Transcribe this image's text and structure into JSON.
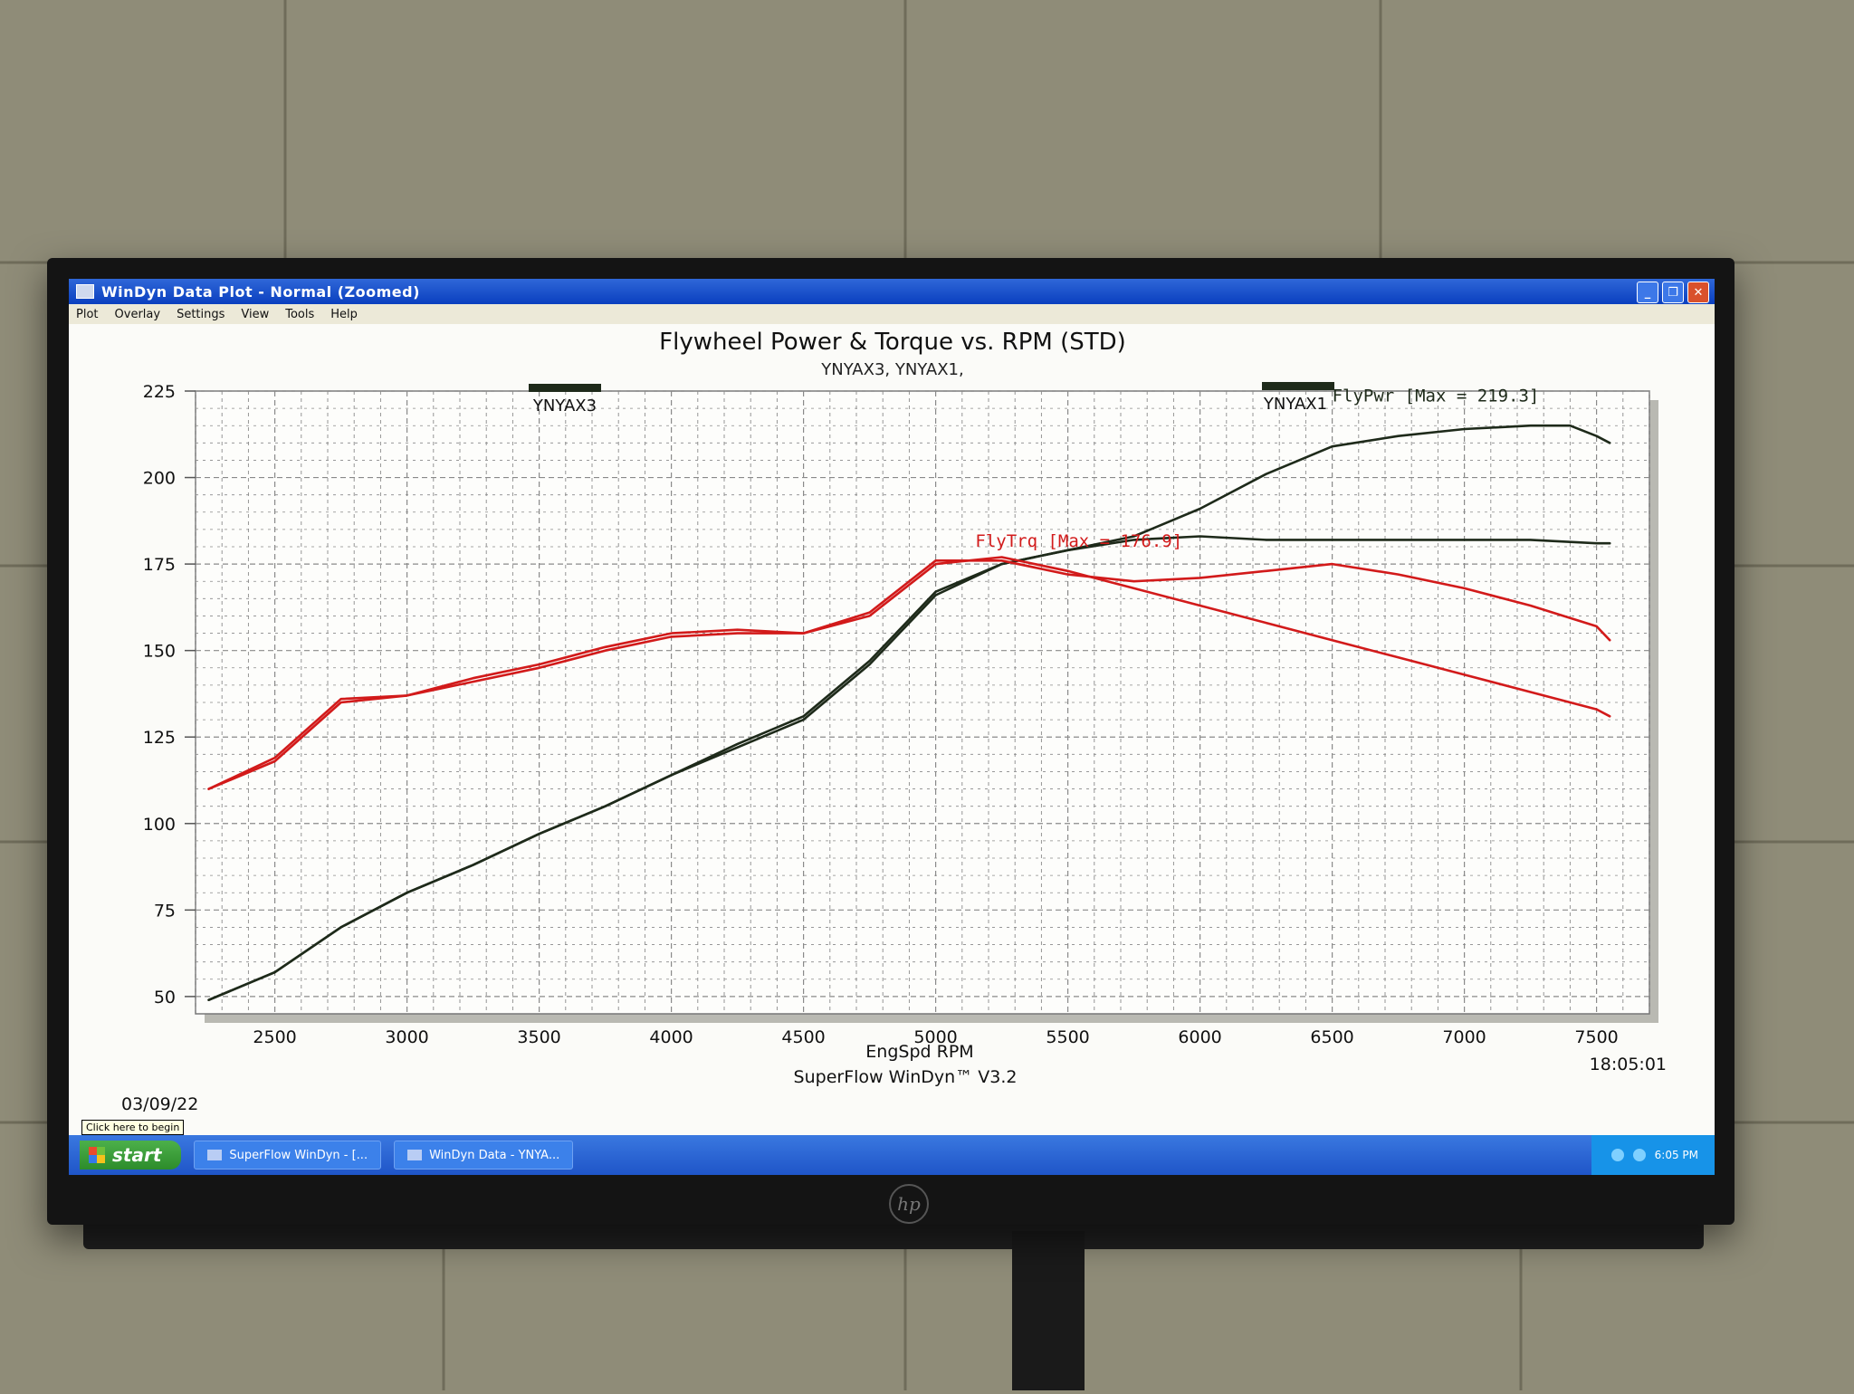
{
  "window": {
    "title": "WinDyn Data Plot - Normal   (Zoomed)"
  },
  "menu": [
    "Plot",
    "Overlay",
    "Settings",
    "View",
    "Tools",
    "Help"
  ],
  "footer": {
    "date": "03/09/22",
    "software": "SuperFlow WinDyn™ V3.2",
    "time": "18:05:01"
  },
  "taskbar": {
    "tooltip": "Click here to begin",
    "start_label": "start",
    "tasks": [
      "SuperFlow WinDyn - [...",
      "WinDyn Data - YNYA..."
    ],
    "clock": "6:05 PM"
  },
  "colors": {
    "power": "#1e2a1a",
    "torque": "#d21a1a",
    "grid": "#8a8a8a",
    "title_bar": "#0a3fbf"
  },
  "chart_data": {
    "type": "line",
    "title": "Flywheel Power & Torque vs. RPM (STD)",
    "subtitle": "YNYAX3, YNYAX1,",
    "xlabel": "EngSpd RPM",
    "ylabel": "",
    "xlim": [
      2200,
      7700
    ],
    "ylim": [
      45,
      225
    ],
    "xticks": [
      2500,
      3000,
      3500,
      4000,
      4500,
      5000,
      5500,
      6000,
      6500,
      7000,
      7500
    ],
    "yticks": [
      50,
      75,
      100,
      125,
      150,
      175,
      200,
      225
    ],
    "grid": true,
    "legend": [
      {
        "name": "YNYAX3",
        "position": "top-left"
      },
      {
        "name": "YNYAX1",
        "position": "top-right"
      }
    ],
    "annotations": [
      {
        "text": "FlyPwr [Max = 219.3]",
        "x": 6500,
        "y": 222,
        "color": "#1e2a1a"
      },
      {
        "text": "FlyTrq [Max = 176.9]",
        "x": 5150,
        "y": 180,
        "color": "#d21a1a"
      }
    ],
    "series": [
      {
        "name": "YNYAX1",
        "kind": "power",
        "color": "#1e2a1a",
        "x": [
          2250,
          2500,
          2750,
          3000,
          3250,
          3500,
          3750,
          4000,
          4250,
          4500,
          4750,
          5000,
          5250,
          5500,
          5750,
          6000,
          6250,
          6500,
          6750,
          7000,
          7250,
          7400,
          7500,
          7550
        ],
        "y": [
          49,
          57,
          70,
          80,
          88,
          97,
          105,
          114,
          122,
          130,
          146,
          166,
          175,
          179,
          183,
          191,
          201,
          209,
          212,
          214,
          215,
          215,
          212,
          210
        ]
      },
      {
        "name": "YNYAX3",
        "kind": "power",
        "color": "#1e2a1a",
        "x": [
          2250,
          2500,
          2750,
          3000,
          3250,
          3500,
          3750,
          4000,
          4250,
          4500,
          4750,
          5000,
          5250,
          5500,
          5750,
          6000,
          6250,
          6500,
          6750,
          7000,
          7250,
          7500,
          7550
        ],
        "y": [
          49,
          57,
          70,
          80,
          88,
          97,
          105,
          114,
          123,
          131,
          147,
          167,
          175,
          179,
          182,
          183,
          182,
          182,
          182,
          182,
          182,
          181,
          181
        ]
      },
      {
        "name": "YNYAX1",
        "kind": "torque",
        "color": "#d21a1a",
        "x": [
          2250,
          2500,
          2750,
          3000,
          3250,
          3500,
          3750,
          4000,
          4250,
          4500,
          4750,
          5000,
          5250,
          5500,
          5750,
          6000,
          6250,
          6500,
          6750,
          7000,
          7250,
          7500,
          7550
        ],
        "y": [
          110,
          119,
          136,
          137,
          142,
          146,
          151,
          155,
          156,
          155,
          161,
          176,
          176,
          172,
          170,
          171,
          173,
          175,
          172,
          168,
          163,
          157,
          153
        ]
      },
      {
        "name": "YNYAX3",
        "kind": "torque",
        "color": "#d21a1a",
        "x": [
          2250,
          2500,
          2750,
          3000,
          3250,
          3500,
          3750,
          4000,
          4250,
          4500,
          4750,
          5000,
          5250,
          5500,
          5750,
          6000,
          6250,
          6500,
          6750,
          7000,
          7250,
          7500,
          7550
        ],
        "y": [
          110,
          118,
          135,
          137,
          141,
          145,
          150,
          154,
          155,
          155,
          160,
          175,
          177,
          173,
          168,
          163,
          158,
          153,
          148,
          143,
          138,
          133,
          131
        ]
      }
    ]
  }
}
